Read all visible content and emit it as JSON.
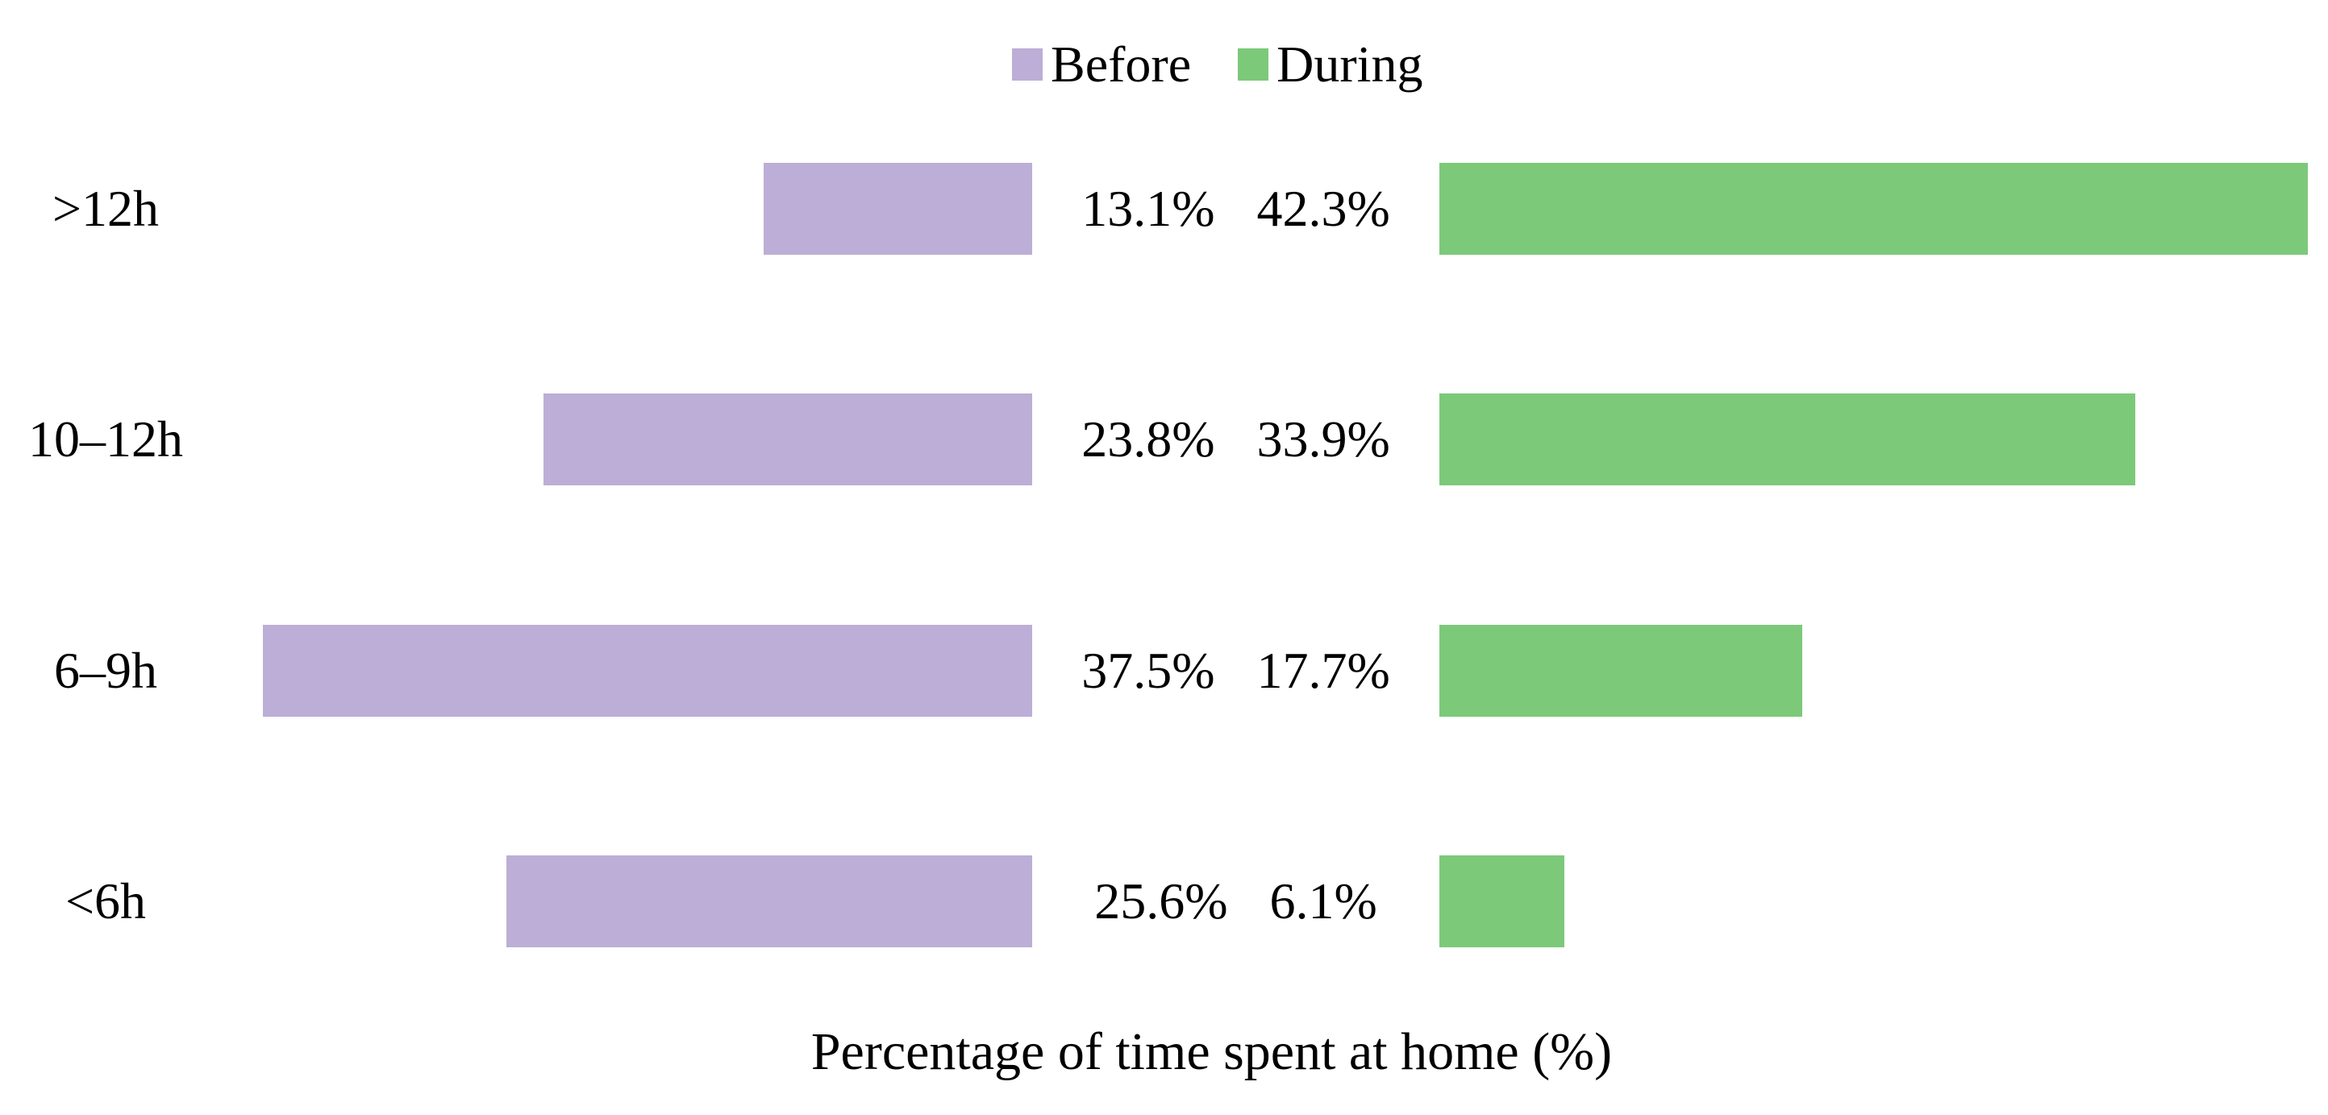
{
  "chart_data": {
    "type": "bar",
    "orientation": "horizontal-diverging",
    "title": "",
    "xlabel": "Percentage of time spent at home (%)",
    "ylabel": "",
    "categories": [
      ">12h",
      "10–12h",
      "6–9h",
      "<6h"
    ],
    "series": [
      {
        "name": "Before",
        "color": "#BCAED6",
        "values": [
          13.1,
          23.8,
          37.5,
          25.6
        ]
      },
      {
        "name": "During",
        "color": "#7CC97A",
        "values": [
          42.3,
          33.9,
          17.7,
          6.1
        ]
      }
    ],
    "value_labels": [
      {
        "before": "13.1%",
        "during": "42.3%"
      },
      {
        "before": "23.8%",
        "during": "33.9%"
      },
      {
        "before": "37.5%",
        "during": "17.7%"
      },
      {
        "before": "25.6%",
        "during": "6.1%"
      }
    ],
    "axis_range_percent": [
      0,
      45
    ],
    "grid": false,
    "legend_position": "top-center",
    "value_label_position": "between-bars"
  },
  "colors": {
    "before": "#BCAED6",
    "during": "#7CC97A",
    "text": "#000000",
    "background": "#FFFFFF"
  }
}
